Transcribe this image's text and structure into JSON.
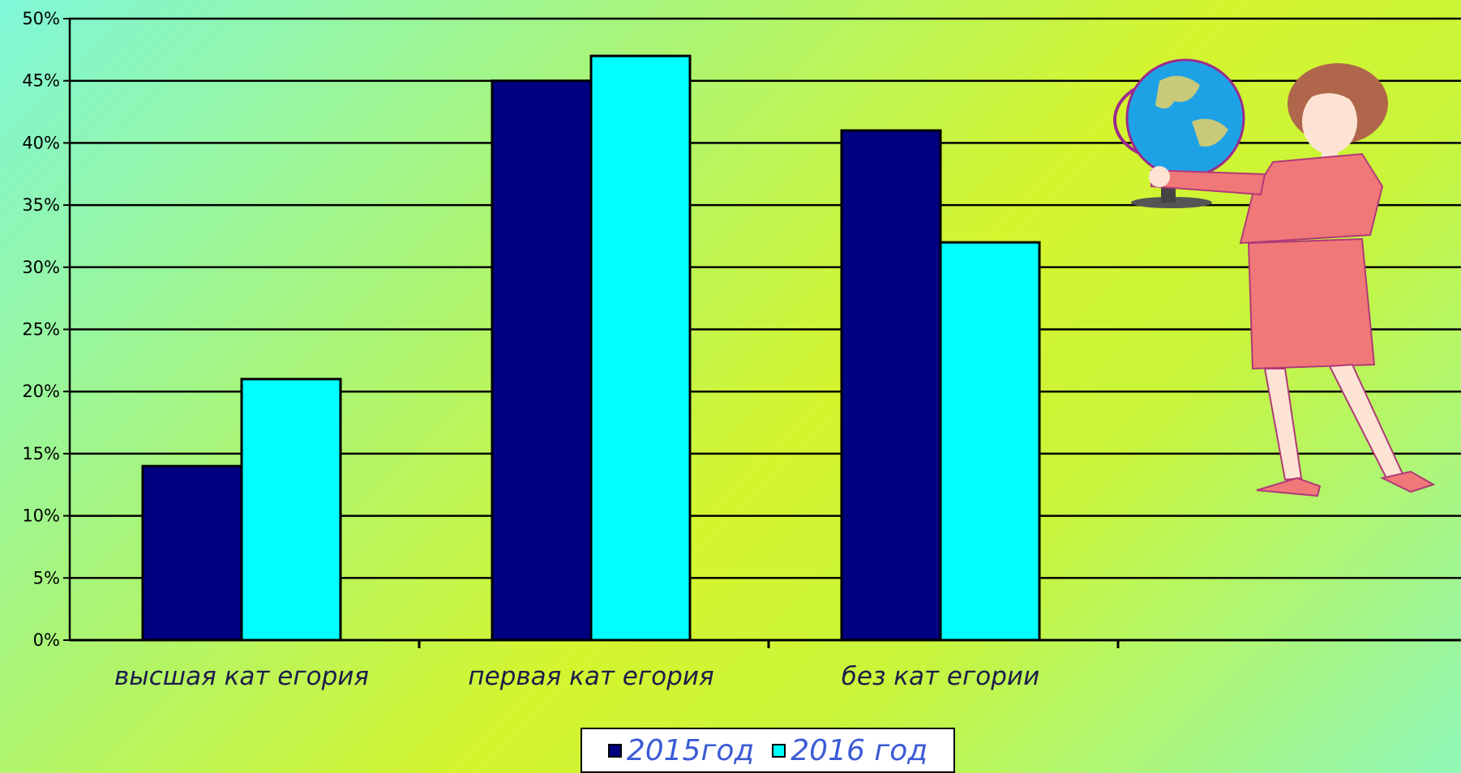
{
  "chart_data": {
    "type": "bar",
    "categories": [
      "высшая кат егория",
      "первая кат егория",
      "без кат егории"
    ],
    "series": [
      {
        "name": "2015год",
        "values": [
          14,
          45,
          41
        ],
        "color": "#000080"
      },
      {
        "name": "2016 год",
        "values": [
          21,
          47,
          32
        ],
        "color": "#00ffff"
      }
    ],
    "ylim": [
      0,
      50
    ],
    "yticks": [
      "0%",
      "5%",
      "10%",
      "15%",
      "20%",
      "25%",
      "30%",
      "35%",
      "40%",
      "45%",
      "50%"
    ],
    "grid": true,
    "legend_position": "bottom"
  },
  "decoration": {
    "illustration": "teacher-holding-globe"
  }
}
